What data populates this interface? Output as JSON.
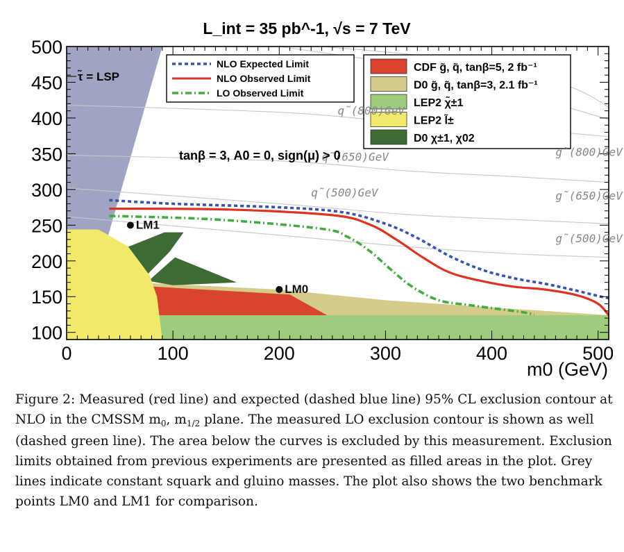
{
  "chart_data": {
    "type": "line",
    "title": "L_int = 35 pb^-1, √s = 7 TeV",
    "xlabel": "m0 (GeV)",
    "ylabel": "",
    "xlim": [
      0,
      510
    ],
    "ylim": [
      90,
      500
    ],
    "x_ticks": [
      0,
      100,
      200,
      300,
      400,
      500
    ],
    "y_ticks": [
      100,
      150,
      200,
      250,
      300,
      350,
      400,
      450,
      500
    ],
    "annotation_params": "tanβ = 3, A0 = 0, sign(μ) > 0",
    "stau_label": "τ̃ = LSP",
    "series": [
      {
        "name": "NLO Expected Limit",
        "color": "#3355aa",
        "style": "dashed",
        "points": [
          [
            40,
            285
          ],
          [
            100,
            280
          ],
          [
            200,
            275
          ],
          [
            260,
            268
          ],
          [
            300,
            252
          ],
          [
            330,
            232
          ],
          [
            360,
            207
          ],
          [
            390,
            188
          ],
          [
            420,
            176
          ],
          [
            450,
            168
          ],
          [
            475,
            160
          ],
          [
            500,
            151
          ],
          [
            510,
            148
          ]
        ]
      },
      {
        "name": "NLO Observed Limit",
        "color": "#dd3322",
        "style": "solid",
        "points": [
          [
            40,
            273
          ],
          [
            150,
            272
          ],
          [
            250,
            264
          ],
          [
            285,
            251
          ],
          [
            310,
            230
          ],
          [
            335,
            205
          ],
          [
            360,
            184
          ],
          [
            390,
            172
          ],
          [
            420,
            164
          ],
          [
            450,
            160
          ],
          [
            480,
            152
          ],
          [
            500,
            140
          ],
          [
            510,
            124
          ]
        ]
      },
      {
        "name": "LO Observed Limit",
        "color": "#44aa44",
        "style": "dashdot",
        "points": [
          [
            40,
            263
          ],
          [
            140,
            258
          ],
          [
            240,
            245
          ],
          [
            265,
            233
          ],
          [
            285,
            214
          ],
          [
            305,
            188
          ],
          [
            325,
            164
          ],
          [
            350,
            145
          ],
          [
            380,
            138
          ],
          [
            410,
            132
          ],
          [
            430,
            128
          ],
          [
            440,
            125
          ]
        ]
      }
    ],
    "regions": [
      {
        "name": "CDF g̃, q̃, tanβ=5, 2 fb⁻¹",
        "color": "#d9452c"
      },
      {
        "name": "D0 g̃, q̃, tanβ=3, 2.1 fb⁻¹",
        "color": "#d5cb8a"
      },
      {
        "name": "LEP2 χ̃±1",
        "color": "#9ecb7c"
      },
      {
        "name": "LEP2 l̃±",
        "color": "#f0e96c"
      },
      {
        "name": "D0 χ±1, χ02",
        "color": "#3e6b34"
      }
    ],
    "stau_region_color": "#9ea4c2",
    "iso_mass_labels": [
      {
        "text": "q̃(800)GeV"
      },
      {
        "text": "q̃(650)GeV"
      },
      {
        "text": "q̃(500)GeV"
      },
      {
        "text": "g̃(800)GeV"
      },
      {
        "text": "g̃(650)GeV"
      },
      {
        "text": "g̃(500)GeV"
      }
    ],
    "benchmarks": [
      {
        "name": "LM1",
        "x": 60,
        "y": 250
      },
      {
        "name": "LM0",
        "x": 200,
        "y": 160
      }
    ]
  },
  "caption": {
    "text_a": "Figure 2: Measured (red line) and expected (dashed blue line) 95% CL exclusion contour at NLO in the CMSSM m",
    "sub_a": "0",
    "text_b": ", m",
    "sub_b": "1/2",
    "text_c": " plane. The measured LO exclusion contour is shown as well (dashed green line). The area below the curves is excluded by this measurement. Exclusion limits obtained from previous experiments are presented as filled areas in the plot. Grey lines indicate constant squark and gluino masses. The plot also shows the two benchmark points LM0 and LM1 for comparison."
  }
}
